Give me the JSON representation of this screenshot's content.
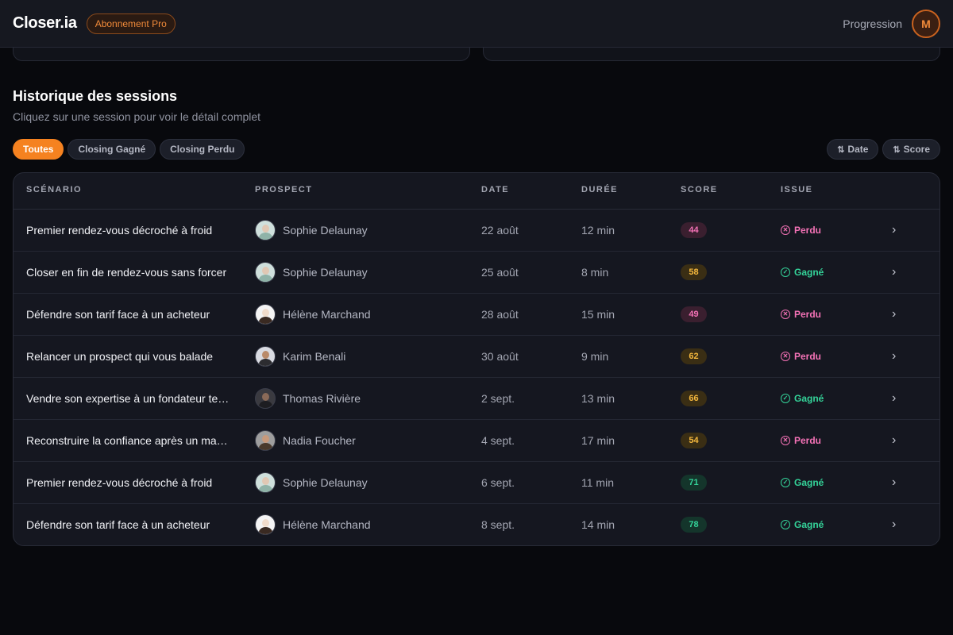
{
  "header": {
    "logo": "Closer.ia",
    "plan_badge": "Abonnement Pro",
    "nav_progress": "Progression",
    "avatar_initial": "M"
  },
  "section": {
    "title": "Historique des sessions",
    "subtitle": "Cliquez sur une session pour voir le détail complet"
  },
  "filters": [
    "Toutes",
    "Closing Gagné",
    "Closing Perdu"
  ],
  "active_filter": "Toutes",
  "sorts": [
    "Date",
    "Score"
  ],
  "table": {
    "columns": [
      "SCÉNARIO",
      "PROSPECT",
      "DATE",
      "DURÉE",
      "SCORE",
      "ISSUE"
    ],
    "rows": [
      {
        "scenario": "Premier rendez-vous décroché à froid",
        "prospect": "Sophie Delaunay",
        "date": "22 août",
        "duration": "12 min",
        "score": "44",
        "issue": "Perdu"
      },
      {
        "scenario": "Closer en fin de rendez-vous sans forcer",
        "prospect": "Sophie Delaunay",
        "date": "25 août",
        "duration": "8 min",
        "score": "58",
        "issue": "Gagné"
      },
      {
        "scenario": "Défendre son tarif face à un acheteur",
        "prospect": "Hélène Marchand",
        "date": "28 août",
        "duration": "15 min",
        "score": "49",
        "issue": "Perdu"
      },
      {
        "scenario": "Relancer un prospect qui vous balade",
        "prospect": "Karim Benali",
        "date": "30 août",
        "duration": "9 min",
        "score": "62",
        "issue": "Perdu"
      },
      {
        "scenario": "Vendre son expertise à un fondateur te…",
        "prospect": "Thomas Rivière",
        "date": "2 sept.",
        "duration": "13 min",
        "score": "66",
        "issue": "Gagné"
      },
      {
        "scenario": "Reconstruire la confiance après un ma…",
        "prospect": "Nadia Foucher",
        "date": "4 sept.",
        "duration": "17 min",
        "score": "54",
        "issue": "Perdu"
      },
      {
        "scenario": "Premier rendez-vous décroché à froid",
        "prospect": "Sophie Delaunay",
        "date": "6 sept.",
        "duration": "11 min",
        "score": "71",
        "issue": "Gagné"
      },
      {
        "scenario": "Défendre son tarif face à un acheteur",
        "prospect": "Hélène Marchand",
        "date": "8 sept.",
        "duration": "14 min",
        "score": "78",
        "issue": "Gagné"
      }
    ]
  },
  "colors": {
    "accent": "#f58220",
    "won": "#34d399",
    "lost": "#f472b6",
    "score_low": "#f472b6",
    "score_mid": "#f5b83d",
    "score_high": "#34d399"
  }
}
